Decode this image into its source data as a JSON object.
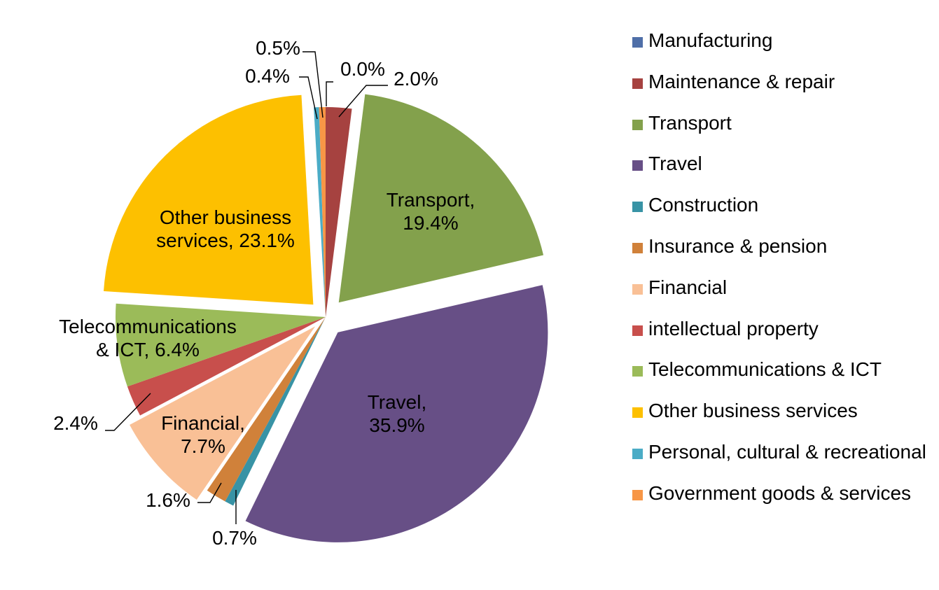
{
  "chart_data": {
    "type": "pie",
    "title": "",
    "legend_position": "right",
    "slices": [
      {
        "name": "Manufacturing",
        "value": 0.0,
        "label": "0.0%",
        "color": "#4f6fa8"
      },
      {
        "name": "Maintenance & repair",
        "value": 2.0,
        "label": "2.0%",
        "color": "#a64240"
      },
      {
        "name": "Transport",
        "value": 19.4,
        "label": "Transport, 19.4%",
        "color": "#83a14c"
      },
      {
        "name": "Travel",
        "value": 35.9,
        "label": "Travel, 35.9%",
        "color": "#674f86"
      },
      {
        "name": "Construction",
        "value": 0.7,
        "label": "0.7%",
        "color": "#3893a5"
      },
      {
        "name": "Insurance & pension",
        "value": 1.6,
        "label": "1.6%",
        "color": "#d0813a"
      },
      {
        "name": "Financial",
        "value": 7.7,
        "label": "Financial, 7.7%",
        "color": "#f9c096"
      },
      {
        "name": "intellectual property",
        "value": 2.4,
        "label": "2.4%",
        "color": "#c84f4c"
      },
      {
        "name": "Telecommunications & ICT",
        "value": 6.4,
        "label": "Telecommunications & ICT, 6.4%",
        "color": "#9bbb59"
      },
      {
        "name": "Other business services",
        "value": 23.1,
        "label": "Other business services, 23.1%",
        "color": "#fdc000"
      },
      {
        "name": "Personal, cultural & recreational",
        "value": 0.4,
        "label": "0.4%",
        "color": "#4bacc6"
      },
      {
        "name": "Government goods & services",
        "value": 0.5,
        "label": "0.5%",
        "color": "#f79646"
      }
    ]
  }
}
